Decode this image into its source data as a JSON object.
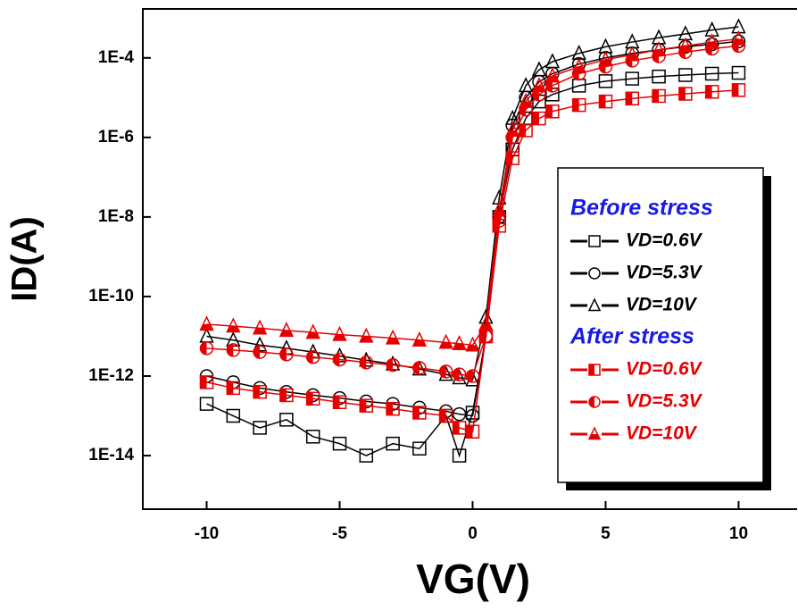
{
  "chart_data": {
    "type": "line",
    "x_label": "VG(V)",
    "y_label": "ID(A)",
    "log_y": true,
    "xlim": [
      -12.4,
      12.2
    ],
    "ylim": [
      4.5e-16,
      0.0017
    ],
    "xticks": [
      -10,
      -5,
      0,
      5,
      10
    ],
    "yticks": [
      {
        "value": 0.0001,
        "label": "1E-4"
      },
      {
        "value": 1e-06,
        "label": "1E-6"
      },
      {
        "value": 1e-08,
        "label": "1E-8"
      },
      {
        "value": 1e-10,
        "label": "1E-10"
      },
      {
        "value": 1e-12,
        "label": "1E-12"
      },
      {
        "value": 1e-14,
        "label": "1E-14"
      }
    ],
    "legend_titles": [
      "Before stress",
      "After stress"
    ],
    "legend_title_color": "#1a1ae6",
    "x": [
      -10,
      -9,
      -8,
      -7,
      -6,
      -5,
      -4,
      -3,
      -2,
      -1,
      -0.5,
      0,
      0.5,
      1,
      1.5,
      2,
      2.5,
      3,
      4,
      5,
      6,
      7,
      8,
      9,
      10
    ],
    "series": [
      {
        "name": "VD=0.6V",
        "color": "#000000",
        "marker": "square",
        "marker_fill": "open",
        "values": [
          2e-13,
          1e-13,
          5e-14,
          8e-14,
          3e-14,
          2e-14,
          1e-14,
          2e-14,
          1.5e-14,
          1e-13,
          1e-14,
          1.2e-13,
          1e-11,
          1e-08,
          5e-07,
          3e-06,
          8e-06,
          1.2e-05,
          2e-05,
          2.6e-05,
          3e-05,
          3.4e-05,
          3.7e-05,
          4e-05,
          4.2e-05
        ]
      },
      {
        "name": "VD=5.3V",
        "color": "#000000",
        "marker": "circle",
        "marker_fill": "open",
        "values": [
          1e-12,
          7e-13,
          5e-13,
          4e-13,
          3.3e-13,
          2.8e-13,
          2.3e-13,
          2e-13,
          1.6e-13,
          1.3e-13,
          1.1e-13,
          1e-13,
          1e-11,
          1e-08,
          2e-06,
          1e-05,
          2.5e-05,
          4e-05,
          7e-05,
          0.0001,
          0.00013,
          0.00016,
          0.00019,
          0.00022,
          0.00026
        ]
      },
      {
        "name": "VD=10V",
        "color": "#000000",
        "marker": "triangle",
        "marker_fill": "open",
        "values": [
          1e-11,
          8e-12,
          6e-12,
          5e-12,
          4e-12,
          3.2e-12,
          2.5e-12,
          2e-12,
          1.5e-12,
          1.1e-12,
          9e-13,
          8e-13,
          3e-11,
          3e-08,
          3e-06,
          2e-05,
          5e-05,
          8e-05,
          0.00013,
          0.00019,
          0.00025,
          0.00032,
          0.0004,
          0.0005,
          0.0006
        ]
      },
      {
        "name": "VD=0.6V",
        "color": "#e60000",
        "marker": "square",
        "marker_fill": "half",
        "values": [
          7e-13,
          5e-13,
          4e-13,
          3.3e-13,
          2.7e-13,
          2.2e-13,
          1.8e-13,
          1.5e-13,
          1.2e-13,
          1e-13,
          5e-14,
          4e-14,
          1e-11,
          6e-09,
          3e-07,
          1.5e-06,
          3e-06,
          4.5e-06,
          6.5e-06,
          8e-06,
          9.5e-06,
          1.1e-05,
          1.25e-05,
          1.4e-05,
          1.55e-05
        ]
      },
      {
        "name": "VD=5.3V",
        "color": "#e60000",
        "marker": "circle",
        "marker_fill": "half",
        "values": [
          5e-12,
          4.5e-12,
          4e-12,
          3.5e-12,
          3e-12,
          2.6e-12,
          2.2e-12,
          1.9e-12,
          1.6e-12,
          1.3e-12,
          1.1e-12,
          1e-12,
          1e-11,
          8e-09,
          1e-06,
          5e-06,
          1.2e-05,
          2e-05,
          4e-05,
          6e-05,
          8.5e-05,
          0.00011,
          0.00014,
          0.00017,
          0.0002
        ]
      },
      {
        "name": "VD=10V",
        "color": "#e60000",
        "marker": "triangle",
        "marker_fill": "half",
        "values": [
          2e-11,
          1.8e-11,
          1.6e-11,
          1.4e-11,
          1.25e-11,
          1.1e-11,
          1e-11,
          9e-12,
          8e-12,
          7e-12,
          6.5e-12,
          6e-12,
          2e-11,
          1.5e-08,
          1.5e-06,
          8e-06,
          2e-05,
          3.5e-05,
          6e-05,
          9e-05,
          0.00012,
          0.00016,
          0.0002,
          0.00025,
          0.0003
        ]
      }
    ]
  }
}
